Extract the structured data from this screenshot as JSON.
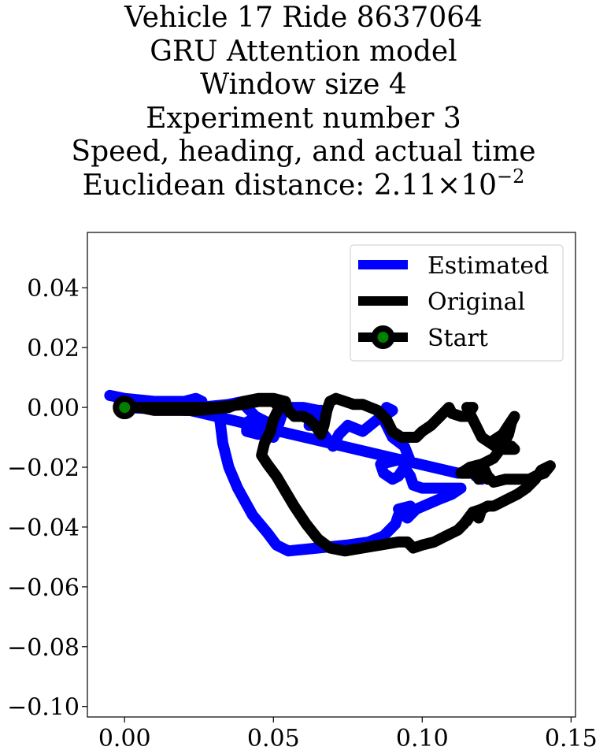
{
  "title": {
    "line1": "Vehicle 17 Ride 8637064",
    "line2": "GRU Attention model",
    "line3": "Window size 4",
    "line4": "Experiment number 3",
    "line5": "Speed, heading, and actual time",
    "line6_prefix": "Euclidean distance: 2.11",
    "line6_times": "×",
    "line6_base": "10",
    "line6_exp": "−2"
  },
  "chart_data": {
    "type": "line",
    "xlim": [
      -0.0125,
      0.1515
    ],
    "ylim": [
      -0.1035,
      0.0585
    ],
    "xticks": [
      0.0,
      0.05,
      0.1,
      0.15
    ],
    "xtick_labels": [
      "0.00",
      "0.05",
      "0.10",
      "0.15"
    ],
    "yticks": [
      0.04,
      0.02,
      0.0,
      -0.02,
      -0.04,
      -0.06,
      -0.08,
      -0.1
    ],
    "ytick_labels": [
      "0.04",
      "0.02",
      "0.00",
      "−0.02",
      "−0.04",
      "−0.06",
      "−0.08",
      "−0.10"
    ],
    "grid": false,
    "legend_position": "top-right",
    "series": [
      {
        "name": "Estimated",
        "color": "#0000ff",
        "points": [
          [
            -0.005,
            0.004
          ],
          [
            0.0,
            0.003
          ],
          [
            0.01,
            0.002
          ],
          [
            0.02,
            0.002
          ],
          [
            0.024,
            0.003
          ],
          [
            0.026,
            0.002
          ],
          [
            0.0265,
            -0.001
          ],
          [
            0.023,
            0.0
          ],
          [
            0.02,
            0.0
          ],
          [
            0.02,
            -0.001
          ],
          [
            0.025,
            -0.001
          ],
          [
            0.028,
            -0.001
          ],
          [
            0.032,
            -0.004
          ],
          [
            0.033,
            -0.012
          ],
          [
            0.035,
            -0.02
          ],
          [
            0.038,
            -0.027
          ],
          [
            0.043,
            -0.036
          ],
          [
            0.048,
            -0.042
          ],
          [
            0.051,
            -0.046
          ],
          [
            0.055,
            -0.048
          ],
          [
            0.065,
            -0.047
          ],
          [
            0.075,
            -0.046
          ],
          [
            0.082,
            -0.045
          ],
          [
            0.087,
            -0.043
          ],
          [
            0.091,
            -0.039
          ],
          [
            0.092,
            -0.036
          ],
          [
            0.094,
            -0.034
          ],
          [
            0.096,
            -0.033
          ],
          [
            0.092,
            -0.034
          ],
          [
            0.095,
            -0.037
          ],
          [
            0.098,
            -0.034
          ],
          [
            0.105,
            -0.031
          ],
          [
            0.11,
            -0.029
          ],
          [
            0.113,
            -0.027
          ],
          [
            0.11,
            -0.027
          ],
          [
            0.1,
            -0.027
          ],
          [
            0.097,
            -0.026
          ],
          [
            0.096,
            -0.023
          ],
          [
            0.094,
            -0.02
          ],
          [
            0.092,
            -0.023
          ],
          [
            0.09,
            -0.024
          ],
          [
            0.087,
            -0.022
          ],
          [
            0.086,
            -0.019
          ],
          [
            0.09,
            -0.018
          ],
          [
            0.095,
            -0.017
          ],
          [
            0.096,
            -0.018
          ],
          [
            0.094,
            -0.013
          ],
          [
            0.09,
            -0.01
          ],
          [
            0.087,
            -0.004
          ],
          [
            0.088,
            0.0
          ],
          [
            0.09,
            -0.001
          ],
          [
            0.087,
            -0.003
          ],
          [
            0.085,
            -0.004
          ],
          [
            0.08,
            -0.008
          ],
          [
            0.075,
            -0.006
          ],
          [
            0.072,
            -0.009
          ],
          [
            0.07,
            -0.013
          ],
          [
            0.067,
            -0.009
          ],
          [
            0.065,
            -0.006
          ],
          [
            0.062,
            -0.006
          ],
          [
            0.065,
            -0.003
          ],
          [
            0.066,
            -0.001
          ],
          [
            0.065,
            -0.001
          ],
          [
            0.06,
            0.0
          ],
          [
            0.055,
            0.0
          ],
          [
            0.053,
            -0.002
          ],
          [
            0.051,
            -0.008
          ],
          [
            0.05,
            -0.01
          ],
          [
            0.048,
            -0.005
          ],
          [
            0.043,
            -0.004
          ],
          [
            0.041,
            -0.005
          ],
          [
            0.041,
            -0.008
          ],
          [
            0.045,
            -0.009
          ],
          [
            0.048,
            -0.009
          ],
          [
            0.05,
            -0.007
          ],
          [
            0.048,
            -0.005
          ],
          [
            0.044,
            -0.003
          ],
          [
            0.041,
            0.0
          ],
          [
            0.04,
            0.002
          ],
          [
            0.035,
            0.001
          ],
          [
            0.025,
            0.0
          ],
          [
            0.015,
            0.0
          ],
          [
            0.005,
            0.0
          ],
          [
            0.0,
            0.0
          ],
          [
            0.022,
            -0.001
          ],
          [
            0.112,
            -0.022
          ],
          [
            0.118,
            -0.021
          ],
          [
            0.121,
            -0.021
          ],
          [
            0.12,
            -0.024
          ],
          [
            0.118,
            -0.023
          ]
        ]
      },
      {
        "name": "Original",
        "color": "#000000",
        "points": [
          [
            0.0,
            0.0
          ],
          [
            0.01,
            0.0
          ],
          [
            0.02,
            0.0
          ],
          [
            0.03,
            0.0
          ],
          [
            0.04,
            0.001
          ],
          [
            0.045,
            0.002
          ],
          [
            0.05,
            0.002
          ],
          [
            0.052,
            0.0
          ],
          [
            0.05,
            -0.004
          ],
          [
            0.049,
            -0.008
          ],
          [
            0.047,
            -0.012
          ],
          [
            0.046,
            -0.016
          ],
          [
            0.048,
            -0.019
          ],
          [
            0.051,
            -0.023
          ],
          [
            0.054,
            -0.028
          ],
          [
            0.057,
            -0.033
          ],
          [
            0.061,
            -0.039
          ],
          [
            0.065,
            -0.044
          ],
          [
            0.069,
            -0.047
          ],
          [
            0.074,
            -0.048
          ],
          [
            0.08,
            -0.047
          ],
          [
            0.086,
            -0.046
          ],
          [
            0.092,
            -0.045
          ],
          [
            0.095,
            -0.045
          ],
          [
            0.097,
            -0.047
          ],
          [
            0.1,
            -0.046
          ],
          [
            0.104,
            -0.045
          ],
          [
            0.108,
            -0.043
          ],
          [
            0.112,
            -0.041
          ],
          [
            0.114,
            -0.039
          ],
          [
            0.117,
            -0.035
          ],
          [
            0.12,
            -0.034
          ],
          [
            0.122,
            -0.033
          ],
          [
            0.124,
            -0.033
          ],
          [
            0.128,
            -0.031
          ],
          [
            0.132,
            -0.029
          ],
          [
            0.135,
            -0.027
          ],
          [
            0.138,
            -0.024
          ],
          [
            0.14,
            -0.021
          ],
          [
            0.143,
            -0.0195
          ],
          [
            0.141,
            -0.022
          ],
          [
            0.138,
            -0.023
          ],
          [
            0.136,
            -0.024
          ],
          [
            0.132,
            -0.024
          ],
          [
            0.128,
            -0.024
          ],
          [
            0.124,
            -0.025
          ],
          [
            0.122,
            -0.023
          ],
          [
            0.121,
            -0.021
          ],
          [
            0.118,
            -0.022
          ],
          [
            0.116,
            -0.022
          ],
          [
            0.113,
            -0.022
          ],
          [
            0.116,
            -0.02
          ],
          [
            0.12,
            -0.019
          ],
          [
            0.124,
            -0.017
          ],
          [
            0.127,
            -0.013
          ],
          [
            0.129,
            -0.009
          ],
          [
            0.13,
            -0.005
          ],
          [
            0.131,
            -0.003
          ],
          [
            0.129,
            -0.006
          ],
          [
            0.127,
            -0.009
          ],
          [
            0.124,
            -0.011
          ],
          [
            0.13,
            -0.013
          ],
          [
            0.131,
            -0.014
          ],
          [
            0.126,
            -0.014
          ],
          [
            0.12,
            -0.01
          ],
          [
            0.118,
            -0.006
          ],
          [
            0.116,
            -0.002
          ],
          [
            0.115,
            0.0
          ],
          [
            0.117,
            0.0
          ],
          [
            0.115,
            -0.003
          ],
          [
            0.113,
            -0.003
          ],
          [
            0.11,
            -0.002
          ],
          [
            0.109,
            0.0
          ],
          [
            0.107,
            -0.002
          ],
          [
            0.103,
            -0.006
          ],
          [
            0.1,
            -0.008
          ],
          [
            0.098,
            -0.01
          ],
          [
            0.093,
            -0.01
          ],
          [
            0.09,
            -0.008
          ],
          [
            0.088,
            -0.004
          ],
          [
            0.085,
            -0.001
          ],
          [
            0.08,
            0.001
          ],
          [
            0.077,
            0.001
          ],
          [
            0.074,
            0.002
          ],
          [
            0.071,
            0.003
          ],
          [
            0.069,
            0.002
          ],
          [
            0.068,
            -0.001
          ],
          [
            0.067,
            -0.006
          ],
          [
            0.066,
            -0.009
          ],
          [
            0.064,
            -0.006
          ],
          [
            0.062,
            -0.004
          ],
          [
            0.06,
            -0.003
          ],
          [
            0.057,
            -0.003
          ],
          [
            0.055,
            -0.001
          ],
          [
            0.054,
            0.002
          ],
          [
            0.05,
            0.003
          ],
          [
            0.045,
            0.003
          ],
          [
            0.04,
            0.002
          ],
          [
            0.035,
            0.0
          ],
          [
            0.025,
            -0.001
          ],
          [
            0.015,
            -0.001
          ],
          [
            0.01,
            -0.001
          ],
          [
            0.005,
            0.0
          ],
          [
            0.0,
            0.0
          ]
        ],
        "extra_segments": [
          [
            [
              0.115,
              -0.038
            ],
            [
              0.117,
              -0.035
            ],
            [
              0.119,
              -0.037
            ],
            [
              0.12,
              -0.034
            ],
            [
              0.118,
              -0.036
            ]
          ],
          [
            [
              0.118,
              -0.022
            ],
            [
              0.119,
              -0.024
            ],
            [
              0.121,
              -0.021
            ],
            [
              0.122,
              -0.024
            ]
          ]
        ]
      },
      {
        "name": "Start",
        "color": "#000000",
        "marker_face": "#008000",
        "points": [
          [
            0.0,
            0.0
          ]
        ]
      }
    ]
  }
}
